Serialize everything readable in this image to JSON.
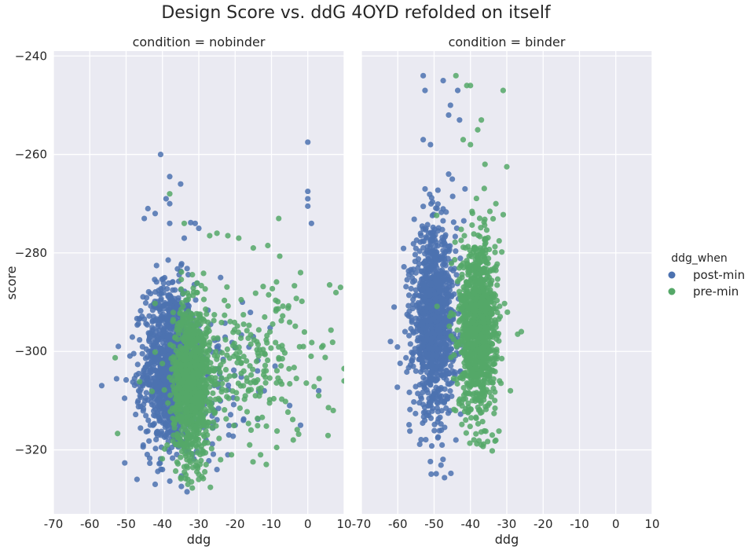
{
  "chart_data": {
    "type": "scatter",
    "title": "Design Score vs. ddG 4OYD refolded on itself",
    "xlabel": "ddg",
    "ylabel": "score",
    "xlim": [
      -70,
      10
    ],
    "ylim": [
      -333,
      -239
    ],
    "xticks": [
      -70,
      -60,
      -50,
      -40,
      -30,
      -20,
      -10,
      0,
      10
    ],
    "yticks": [
      -240,
      -260,
      -280,
      -300,
      -320
    ],
    "grid": true,
    "legend": {
      "title": "ddg_when",
      "placement": "right",
      "entries": [
        "post-min",
        "pre-min"
      ]
    },
    "colors": {
      "post-min": "#4c72b0",
      "pre-min": "#55a868",
      "panel_bg": "#eaeaf2",
      "grid": "#ffffff"
    },
    "panels": [
      {
        "title": "condition = nobinder",
        "series": [
          {
            "name": "post-min",
            "cluster": {
              "x_mean": -38,
              "x_sd": 3.5,
              "y_mean": -303,
              "y_sd": 8.5,
              "n": 1100
            },
            "scatter": {
              "x_mean": -30,
              "x_sd": 10,
              "y_mean": -306,
              "y_sd": 7,
              "n": 140
            },
            "x": [
              -40.5,
              -38,
              -35,
              -34,
              -30,
              -31,
              -39,
              -44,
              -45,
              -38,
              -42,
              -38,
              0,
              0,
              0,
              0,
              1,
              -28,
              -25,
              -22,
              -20,
              -12,
              -9,
              -15,
              -5,
              -2,
              3,
              -42,
              -47,
              -40,
              -24,
              -18
            ],
            "y": [
              -260,
              -264.5,
              -266,
              -277,
              -275,
              -274,
              -269,
              -271,
              -273,
              -270,
              -272,
              -274,
              -257.5,
              -267.5,
              -269,
              -270.5,
              -274,
              -318,
              -324,
              -321,
              -315,
              -308,
              -303,
              -297,
              -311,
              -315,
              -308,
              -327,
              -326,
              -324,
              -285,
              -290
            ]
          },
          {
            "name": "pre-min",
            "cluster": {
              "x_mean": -32,
              "x_sd": 2.5,
              "y_mean": -306,
              "y_sd": 7.5,
              "n": 1100
            },
            "scatter": {
              "x_mean": -16,
              "x_sd": 12,
              "y_mean": -303,
              "y_sd": 8,
              "n": 240
            },
            "x": [
              -38,
              -34,
              -27,
              -25,
              -22,
              -19,
              -15,
              -11,
              -8,
              -2,
              6,
              9,
              10,
              10,
              3,
              -4,
              7,
              -13,
              -21,
              -33,
              -30,
              -32,
              -33,
              -28,
              -24,
              -16
            ],
            "y": [
              -268,
              -274,
              -276.5,
              -276,
              -276.5,
              -277,
              -279,
              -278.5,
              -273,
              -284,
              -286.5,
              -287,
              -303.5,
              -306,
              -309,
              -318,
              -312,
              -321,
              -321,
              -326,
              -325,
              -326.5,
              -327,
              -323,
              -322,
              -319
            ]
          }
        ]
      },
      {
        "title": "condition = binder",
        "series": [
          {
            "name": "post-min",
            "cluster": {
              "x_mean": -50,
              "x_sd": 2.8,
              "y_mean": -294,
              "y_sd": 9,
              "n": 1100
            },
            "scatter": {
              "x_mean": -50,
              "x_sd": 4,
              "y_mean": -293,
              "y_sd": 12,
              "n": 60
            },
            "x": [
              -53,
              -47.5,
              -52.5,
              -45.5,
              -46,
              -43,
              -43.5,
              -53,
              -51,
              -46,
              -45,
              -41.5,
              -62,
              -58,
              -61,
              -44,
              -52,
              -48,
              -55
            ],
            "y": [
              -244,
              -245,
              -247,
              -250,
              -252,
              -253,
              -247,
              -257,
              -258,
              -264,
              -265,
              -267,
              -298,
              -296,
              -291,
              -318,
              -313,
              -316,
              -304
            ]
          },
          {
            "name": "pre-min",
            "cluster": {
              "x_mean": -38,
              "x_sd": 2.5,
              "y_mean": -295,
              "y_sd": 8.5,
              "n": 1100
            },
            "scatter": {
              "x_mean": -38,
              "x_sd": 3.5,
              "y_mean": -294,
              "y_sd": 10,
              "n": 60
            },
            "x": [
              -44,
              -41,
              -40,
              -37,
              -31,
              -40,
              -38,
              -42,
              -36,
              -30,
              -33,
              -27,
              -26,
              -32,
              -29,
              -34,
              -37
            ],
            "y": [
              -244,
              -246,
              -246,
              -253,
              -247,
              -258,
              -255,
              -257,
              -262,
              -262.5,
              -270,
              -296.5,
              -296,
              -306,
              -308,
              -317,
              -319
            ]
          }
        ]
      }
    ]
  }
}
